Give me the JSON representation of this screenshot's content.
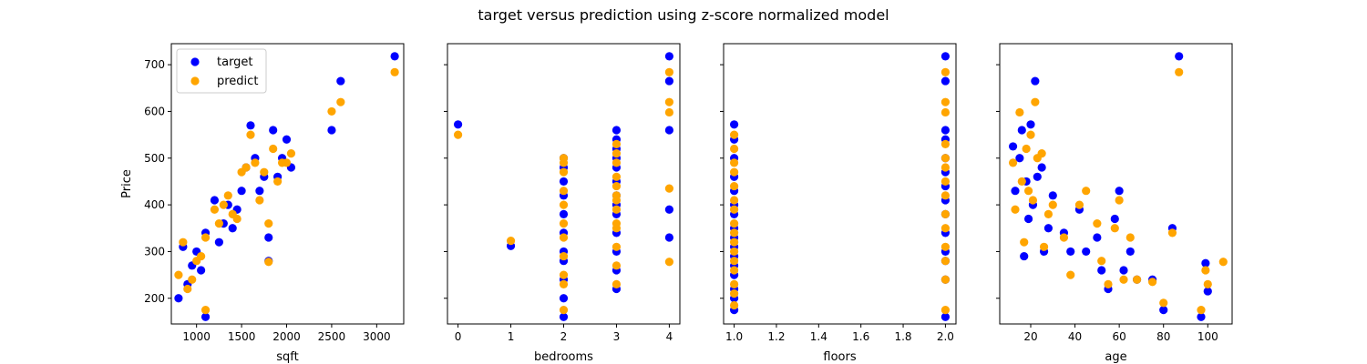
{
  "figure": {
    "title": "target versus prediction using z-score normalized model"
  },
  "colors": {
    "target": "#0000ff",
    "predict": "#ffa500"
  },
  "legend": {
    "placement": "upper-left",
    "entries": [
      "target",
      "predict"
    ]
  },
  "chart_data": [
    {
      "type": "scatter",
      "xlabel": "sqft",
      "ylabel": "Price",
      "xlim": [
        720,
        3300
      ],
      "ylim": [
        145,
        745
      ],
      "xticks": [
        1000,
        1500,
        2000,
        2500,
        3000
      ],
      "xtick_labels": [
        "1000",
        "1500",
        "2000",
        "2500",
        "3000"
      ],
      "yticks": [
        200,
        300,
        400,
        500,
        600,
        700
      ],
      "ytick_labels": [
        "200",
        "300",
        "400",
        "500",
        "600",
        "700"
      ],
      "series": [
        {
          "name": "target",
          "x": [
            800,
            850,
            900,
            950,
            1000,
            1050,
            1100,
            1100,
            1200,
            1250,
            1300,
            1350,
            1400,
            1450,
            1500,
            1550,
            1600,
            1650,
            1700,
            1750,
            1800,
            1800,
            1850,
            1900,
            1950,
            2000,
            2050,
            2500,
            2600,
            3200
          ],
          "y": [
            200,
            310,
            230,
            270,
            300,
            260,
            340,
            160,
            410,
            320,
            360,
            400,
            350,
            390,
            430,
            480,
            570,
            500,
            430,
            460,
            330,
            280,
            560,
            460,
            500,
            540,
            480,
            560,
            665,
            718
          ]
        },
        {
          "name": "predict",
          "x": [
            800,
            850,
            900,
            950,
            1000,
            1050,
            1100,
            1100,
            1200,
            1250,
            1300,
            1350,
            1400,
            1450,
            1500,
            1550,
            1600,
            1650,
            1700,
            1750,
            1800,
            1800,
            1850,
            1900,
            1950,
            2000,
            2050,
            2500,
            2600,
            3200
          ],
          "y": [
            250,
            320,
            220,
            240,
            280,
            290,
            330,
            175,
            390,
            360,
            400,
            420,
            380,
            370,
            470,
            480,
            550,
            490,
            410,
            470,
            360,
            278,
            520,
            450,
            490,
            490,
            510,
            600,
            620,
            684
          ]
        }
      ]
    },
    {
      "type": "scatter",
      "xlabel": "bedrooms",
      "ylabel": "",
      "xlim": [
        -0.2,
        4.2
      ],
      "ylim": [
        145,
        745
      ],
      "xticks": [
        0,
        1,
        2,
        3,
        4
      ],
      "xtick_labels": [
        "0",
        "1",
        "2",
        "3",
        "4"
      ],
      "yticks": [
        200,
        300,
        400,
        500,
        600,
        700
      ],
      "ytick_labels": [],
      "series": [
        {
          "name": "target",
          "x": [
            0,
            1,
            2,
            2,
            2,
            2,
            2,
            2,
            2,
            2,
            2,
            2,
            2,
            3,
            3,
            3,
            3,
            3,
            3,
            3,
            3,
            3,
            3,
            3,
            3,
            3,
            4,
            4,
            4,
            4,
            4
          ],
          "y": [
            572,
            312,
            160,
            200,
            240,
            280,
            300,
            340,
            380,
            420,
            450,
            480,
            500,
            220,
            260,
            300,
            340,
            380,
            420,
            450,
            480,
            500,
            520,
            540,
            560,
            400,
            718,
            665,
            560,
            390,
            330
          ]
        },
        {
          "name": "predict",
          "x": [
            0,
            1,
            2,
            2,
            2,
            2,
            2,
            2,
            2,
            2,
            2,
            2,
            2,
            3,
            3,
            3,
            3,
            3,
            3,
            3,
            3,
            3,
            3,
            3,
            3,
            3,
            4,
            4,
            4,
            4,
            4
          ],
          "y": [
            550,
            323,
            175,
            230,
            250,
            290,
            330,
            360,
            400,
            430,
            470,
            490,
            500,
            230,
            270,
            310,
            350,
            390,
            410,
            440,
            460,
            490,
            510,
            530,
            360,
            420,
            684,
            620,
            598,
            435,
            278
          ]
        }
      ]
    },
    {
      "type": "scatter",
      "xlabel": "floors",
      "ylabel": "",
      "xlim": [
        0.95,
        2.05
      ],
      "ylim": [
        145,
        745
      ],
      "xticks": [
        1.0,
        1.2,
        1.4,
        1.6,
        1.8,
        2.0
      ],
      "xtick_labels": [
        "1.0",
        "1.2",
        "1.4",
        "1.6",
        "1.8",
        "2.0"
      ],
      "yticks": [
        200,
        300,
        400,
        500,
        600,
        700
      ],
      "ytick_labels": [],
      "series": [
        {
          "name": "target",
          "x": [
            1,
            1,
            1,
            1,
            1,
            1,
            1,
            1,
            1,
            1,
            1,
            1,
            1,
            1,
            1,
            1,
            2,
            2,
            2,
            2,
            2,
            2,
            2,
            2,
            2,
            2,
            2,
            2,
            2,
            2
          ],
          "y": [
            175,
            200,
            220,
            250,
            270,
            290,
            310,
            330,
            350,
            380,
            400,
            430,
            460,
            500,
            540,
            572,
            160,
            240,
            280,
            300,
            340,
            380,
            410,
            440,
            470,
            500,
            540,
            560,
            665,
            718
          ]
        },
        {
          "name": "predict",
          "x": [
            1,
            1,
            1,
            1,
            1,
            1,
            1,
            1,
            1,
            1,
            1,
            1,
            1,
            1,
            1,
            1,
            2,
            2,
            2,
            2,
            2,
            2,
            2,
            2,
            2,
            2,
            2,
            2,
            2,
            2
          ],
          "y": [
            185,
            210,
            230,
            260,
            280,
            300,
            320,
            340,
            360,
            390,
            410,
            440,
            470,
            490,
            520,
            550,
            175,
            240,
            280,
            310,
            350,
            380,
            420,
            450,
            480,
            500,
            530,
            598,
            620,
            684
          ]
        }
      ]
    },
    {
      "type": "scatter",
      "xlabel": "age",
      "ylabel": "",
      "xlim": [
        6,
        111
      ],
      "ylim": [
        145,
        745
      ],
      "xticks": [
        20,
        40,
        60,
        80,
        100
      ],
      "xtick_labels": [
        "20",
        "40",
        "60",
        "80",
        "100"
      ],
      "yticks": [
        200,
        300,
        400,
        500,
        600,
        700
      ],
      "ytick_labels": [],
      "series": [
        {
          "name": "target",
          "x": [
            12,
            13,
            15,
            16,
            17,
            18,
            19,
            20,
            21,
            22,
            23,
            25,
            26,
            28,
            30,
            35,
            38,
            42,
            45,
            50,
            52,
            55,
            58,
            60,
            62,
            65,
            68,
            75,
            80,
            84,
            87,
            97,
            99,
            100
          ],
          "y": [
            525,
            430,
            500,
            560,
            290,
            450,
            370,
            572,
            400,
            665,
            460,
            480,
            300,
            350,
            420,
            340,
            300,
            390,
            300,
            330,
            260,
            220,
            370,
            430,
            260,
            300,
            240,
            240,
            175,
            350,
            718,
            160,
            275,
            215
          ]
        },
        {
          "name": "predict",
          "x": [
            12,
            13,
            15,
            16,
            17,
            18,
            19,
            20,
            21,
            22,
            23,
            25,
            26,
            28,
            30,
            35,
            38,
            42,
            45,
            50,
            52,
            55,
            58,
            60,
            62,
            65,
            68,
            75,
            80,
            84,
            87,
            97,
            99,
            100,
            107
          ],
          "y": [
            490,
            390,
            598,
            450,
            320,
            520,
            430,
            550,
            410,
            620,
            500,
            510,
            310,
            380,
            400,
            330,
            250,
            400,
            430,
            360,
            280,
            230,
            350,
            410,
            240,
            330,
            240,
            235,
            190,
            340,
            684,
            175,
            260,
            230,
            278
          ]
        }
      ]
    }
  ]
}
